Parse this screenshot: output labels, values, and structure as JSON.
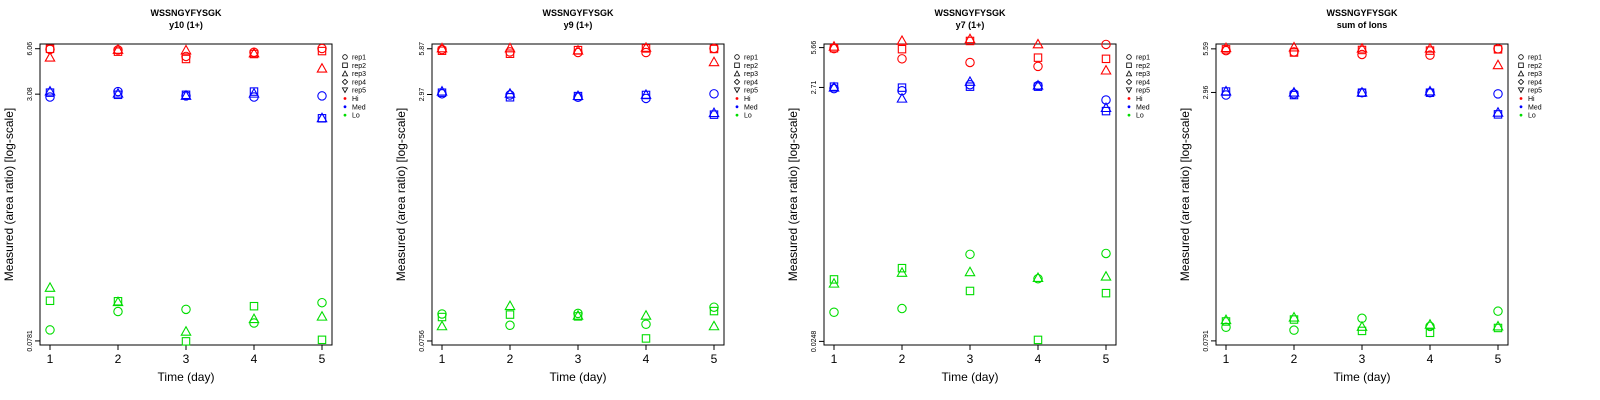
{
  "chart_data": [
    {
      "type": "scatter",
      "title": "WSSNGYFYSGK",
      "subtitle": "y10 (1+)",
      "xlabel": "Time (day)",
      "ylabel": "Measured (area ratio) [log-scale]",
      "x_ticks": [
        "1",
        "2",
        "3",
        "4",
        "5"
      ],
      "y_ticks": [
        {
          "value": 0.0781,
          "label": "0.0781"
        },
        {
          "value": 3.08,
          "label": "3.08"
        },
        {
          "value": 6.06,
          "label": "6.06"
        }
      ],
      "ylim": [
        0.0735,
        6.5
      ],
      "scale": "log",
      "series": [
        {
          "level": "Hi",
          "rep": "rep1",
          "values": [
            6.0,
            5.95,
            5.4,
            5.75,
            6.08
          ]
        },
        {
          "level": "Hi",
          "rep": "rep2",
          "values": [
            6.05,
            5.8,
            5.2,
            5.6,
            5.85
          ]
        },
        {
          "level": "Hi",
          "rep": "rep3",
          "values": [
            5.3,
            5.95,
            5.9,
            5.65,
            4.5
          ]
        },
        {
          "level": "Med",
          "rep": "rep1",
          "values": [
            2.95,
            3.2,
            3.0,
            2.95,
            3.0
          ]
        },
        {
          "level": "Med",
          "rep": "rep2",
          "values": [
            3.15,
            3.05,
            3.05,
            3.2,
            2.15
          ]
        },
        {
          "level": "Med",
          "rep": "rep3",
          "values": [
            3.2,
            3.1,
            3.0,
            3.1,
            2.15
          ]
        },
        {
          "level": "Lo",
          "rep": "rep1",
          "values": [
            0.092,
            0.121,
            0.125,
            0.102,
            0.138
          ]
        },
        {
          "level": "Lo",
          "rep": "rep2",
          "values": [
            0.142,
            0.141,
            0.0776,
            0.131,
            0.0794
          ]
        },
        {
          "level": "Lo",
          "rep": "rep3",
          "values": [
            0.172,
            0.139,
            0.0895,
            0.108,
            0.112
          ]
        }
      ]
    },
    {
      "type": "scatter",
      "title": "WSSNGYFYSGK",
      "subtitle": "y9 (1+)",
      "xlabel": "Time (day)",
      "ylabel": "Measured (area ratio) [log-scale]",
      "x_ticks": [
        "1",
        "2",
        "3",
        "4",
        "5"
      ],
      "y_ticks": [
        {
          "value": 0.0756,
          "label": "0.0756"
        },
        {
          "value": 2.97,
          "label": "2.97"
        },
        {
          "value": 5.87,
          "label": "5.87"
        }
      ],
      "ylim": [
        0.0712,
        6.3
      ],
      "scale": "log",
      "series": [
        {
          "level": "Hi",
          "rep": "rep1",
          "values": [
            5.8,
            5.6,
            5.55,
            5.55,
            5.9
          ]
        },
        {
          "level": "Hi",
          "rep": "rep2",
          "values": [
            5.7,
            5.45,
            5.75,
            5.9,
            5.85
          ]
        },
        {
          "level": "Hi",
          "rep": "rep3",
          "values": [
            5.9,
            5.9,
            5.7,
            5.95,
            4.8
          ]
        },
        {
          "level": "Med",
          "rep": "rep1",
          "values": [
            3.0,
            2.95,
            2.85,
            2.8,
            3.0
          ]
        },
        {
          "level": "Med",
          "rep": "rep2",
          "values": [
            3.05,
            2.85,
            2.9,
            2.95,
            2.2
          ]
        },
        {
          "level": "Med",
          "rep": "rep3",
          "values": [
            3.1,
            3.0,
            2.9,
            2.95,
            2.25
          ]
        },
        {
          "level": "Lo",
          "rep": "rep1",
          "values": [
            0.113,
            0.0955,
            0.114,
            0.097,
            0.125
          ]
        },
        {
          "level": "Lo",
          "rep": "rep2",
          "values": [
            0.108,
            0.112,
            0.109,
            0.0785,
            0.118
          ]
        },
        {
          "level": "Lo",
          "rep": "rep3",
          "values": [
            0.094,
            0.127,
            0.11,
            0.11,
            0.094
          ]
        }
      ]
    },
    {
      "type": "scatter",
      "title": "WSSNGYFYSGK",
      "subtitle": "y7 (1+)",
      "xlabel": "Time (day)",
      "ylabel": "Measured (area ratio) [log-scale]",
      "x_ticks": [
        "1",
        "2",
        "3",
        "4",
        "5"
      ],
      "y_ticks": [
        {
          "value": 0.0248,
          "label": "0.0248"
        },
        {
          "value": 2.71,
          "label": "2.71"
        },
        {
          "value": 5.66,
          "label": "5.66"
        }
      ],
      "ylim": [
        0.0232,
        6.05
      ],
      "scale": "log",
      "series": [
        {
          "level": "Hi",
          "rep": "rep1",
          "values": [
            5.55,
            4.6,
            4.3,
            4.0,
            6.0
          ]
        },
        {
          "level": "Hi",
          "rep": "rep2",
          "values": [
            5.6,
            5.5,
            6.4,
            4.7,
            4.6
          ]
        },
        {
          "level": "Hi",
          "rep": "rep3",
          "values": [
            5.75,
            6.4,
            6.6,
            6.0,
            3.7
          ]
        },
        {
          "level": "Med",
          "rep": "rep1",
          "values": [
            2.65,
            2.55,
            2.85,
            2.8,
            2.15
          ]
        },
        {
          "level": "Med",
          "rep": "rep2",
          "values": [
            2.75,
            2.7,
            2.75,
            2.75,
            1.75
          ]
        },
        {
          "level": "Med",
          "rep": "rep3",
          "values": [
            2.7,
            2.2,
            3.0,
            2.8,
            1.85
          ]
        },
        {
          "level": "Lo",
          "rep": "rep1",
          "values": [
            0.0425,
            0.0455,
            0.124,
            0.079,
            0.126
          ]
        },
        {
          "level": "Lo",
          "rep": "rep2",
          "values": [
            0.078,
            0.096,
            0.063,
            0.0255,
            0.0605
          ]
        },
        {
          "level": "Lo",
          "rep": "rep3",
          "values": [
            0.072,
            0.088,
            0.089,
            0.08,
            0.082
          ]
        }
      ]
    },
    {
      "type": "scatter",
      "title": "WSSNGYFYSGK",
      "subtitle": "sum of Ions",
      "xlabel": "Time (day)",
      "ylabel": "Measured (area ratio) [log-scale]",
      "x_ticks": [
        "1",
        "2",
        "3",
        "4",
        "5"
      ],
      "y_ticks": [
        {
          "value": 0.0791,
          "label": "0.0791"
        },
        {
          "value": 2.96,
          "label": "2.96"
        },
        {
          "value": 5.59,
          "label": "5.59"
        }
      ],
      "ylim": [
        0.0745,
        6.0
      ],
      "scale": "log",
      "series": [
        {
          "level": "Hi",
          "rep": "rep1",
          "values": [
            5.45,
            5.35,
            5.15,
            5.1,
            5.6
          ]
        },
        {
          "level": "Hi",
          "rep": "rep2",
          "values": [
            5.55,
            5.3,
            5.5,
            5.45,
            5.55
          ]
        },
        {
          "level": "Hi",
          "rep": "rep3",
          "values": [
            5.65,
            5.7,
            5.6,
            5.6,
            4.4
          ]
        },
        {
          "level": "Med",
          "rep": "rep1",
          "values": [
            2.85,
            2.9,
            2.95,
            2.95,
            2.9
          ]
        },
        {
          "level": "Med",
          "rep": "rep2",
          "values": [
            3.0,
            2.85,
            2.95,
            2.95,
            2.15
          ]
        },
        {
          "level": "Med",
          "rep": "rep3",
          "values": [
            3.0,
            2.95,
            2.95,
            3.0,
            2.2
          ]
        },
        {
          "level": "Lo",
          "rep": "rep1",
          "values": [
            0.0965,
            0.0925,
            0.11,
            0.0978,
            0.122
          ]
        },
        {
          "level": "Lo",
          "rep": "rep2",
          "values": [
            0.105,
            0.108,
            0.0915,
            0.089,
            0.0955
          ]
        },
        {
          "level": "Lo",
          "rep": "rep3",
          "values": [
            0.107,
            0.111,
            0.097,
            0.1,
            0.0975
          ]
        }
      ]
    }
  ],
  "legend": {
    "entries": [
      {
        "label": "rep1",
        "marker": "circle"
      },
      {
        "label": "rep2",
        "marker": "square"
      },
      {
        "label": "rep3",
        "marker": "triangle-up"
      },
      {
        "label": "rep4",
        "marker": "diamond"
      },
      {
        "label": "rep5",
        "marker": "triangle-down"
      },
      {
        "label": "Hi",
        "marker": "dot",
        "color": "#ff0000"
      },
      {
        "label": "Med",
        "marker": "dot",
        "color": "#0000ff"
      },
      {
        "label": "Lo",
        "marker": "dot",
        "color": "#00dd00"
      }
    ]
  },
  "colors": {
    "Hi": "#ff0000",
    "Med": "#0000ff",
    "Lo": "#00dd00"
  }
}
